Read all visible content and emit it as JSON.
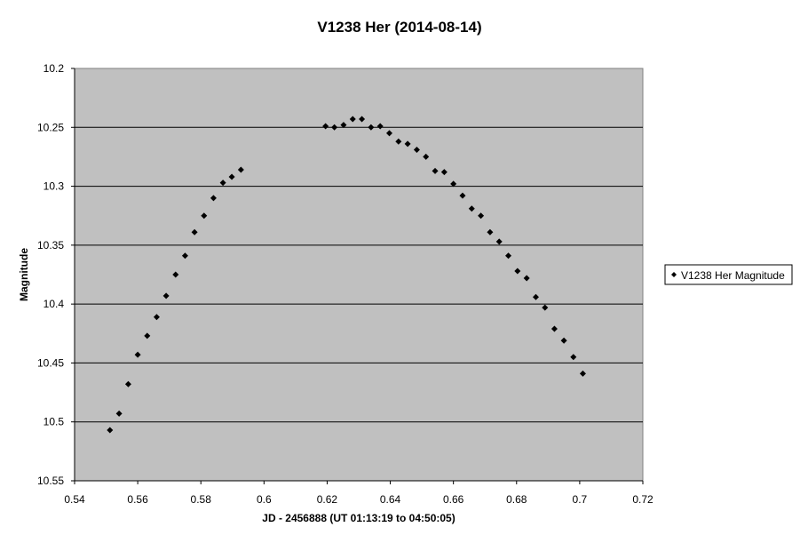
{
  "chart_data": {
    "type": "scatter",
    "title": "V1238 Her (2014-08-14)",
    "xlabel": "JD - 2456888 (UT 01:13:19 to 04:50:05)",
    "ylabel": "Magnitude",
    "xlim": [
      0.54,
      0.72
    ],
    "ylim": [
      10.2,
      10.55
    ],
    "y_inverted": true,
    "x_ticks": [
      "0.54",
      "0.56",
      "0.58",
      "0.6",
      "0.62",
      "0.64",
      "0.66",
      "0.68",
      "0.7",
      "0.72"
    ],
    "y_ticks": [
      "10.2",
      "10.25",
      "10.3",
      "10.35",
      "10.4",
      "10.45",
      "10.5",
      "10.55"
    ],
    "grid": "horizontal",
    "plot_background": "#c0c0c0",
    "marker": "diamond",
    "marker_color": "#000000",
    "legend_position": "right",
    "series": [
      {
        "name": "V1238 Her Magnitude",
        "x": [
          0.5512,
          0.5541,
          0.557,
          0.56,
          0.563,
          0.566,
          0.569,
          0.572,
          0.575,
          0.578,
          0.581,
          0.584,
          0.587,
          0.5898,
          0.5927,
          0.6195,
          0.6223,
          0.6252,
          0.6281,
          0.631,
          0.6339,
          0.6368,
          0.6397,
          0.6426,
          0.6455,
          0.6484,
          0.6513,
          0.6542,
          0.6571,
          0.66,
          0.6629,
          0.6658,
          0.6687,
          0.6716,
          0.6745,
          0.6774,
          0.6803,
          0.6832,
          0.6861,
          0.689,
          0.692,
          0.695,
          0.698,
          0.701
        ],
        "y": [
          10.507,
          10.493,
          10.468,
          10.443,
          10.427,
          10.411,
          10.393,
          10.375,
          10.359,
          10.339,
          10.325,
          10.31,
          10.297,
          10.292,
          10.286,
          10.249,
          10.25,
          10.248,
          10.243,
          10.243,
          10.25,
          10.249,
          10.255,
          10.262,
          10.264,
          10.269,
          10.275,
          10.287,
          10.288,
          10.298,
          10.308,
          10.319,
          10.325,
          10.339,
          10.347,
          10.359,
          10.372,
          10.378,
          10.394,
          10.403,
          10.421,
          10.431,
          10.445,
          10.459
        ]
      }
    ]
  }
}
